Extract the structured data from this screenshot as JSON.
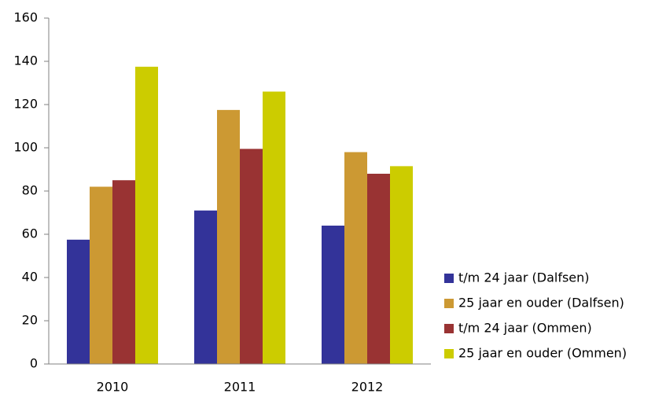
{
  "chart_data": {
    "type": "bar",
    "categories": [
      "2010",
      "2011",
      "2012"
    ],
    "series": [
      {
        "name": "t/m 24 jaar (Dalfsen)",
        "color": "#333399",
        "values": [
          57.5,
          71,
          64
        ]
      },
      {
        "name": "25 jaar en ouder (Dalfsen)",
        "color": "#cc9933",
        "values": [
          82,
          117.5,
          98
        ]
      },
      {
        "name": "t/m 24 jaar (Ommen)",
        "color": "#993333",
        "values": [
          85,
          99.5,
          88
        ]
      },
      {
        "name": "25 jaar en ouder (Ommen)",
        "color": "#cccc00",
        "values": [
          137.5,
          126,
          91.5
        ]
      }
    ],
    "ylim": [
      0,
      160
    ],
    "yticks": [
      0,
      20,
      40,
      60,
      80,
      100,
      120,
      140,
      160
    ],
    "grid": false,
    "legend": "right"
  }
}
